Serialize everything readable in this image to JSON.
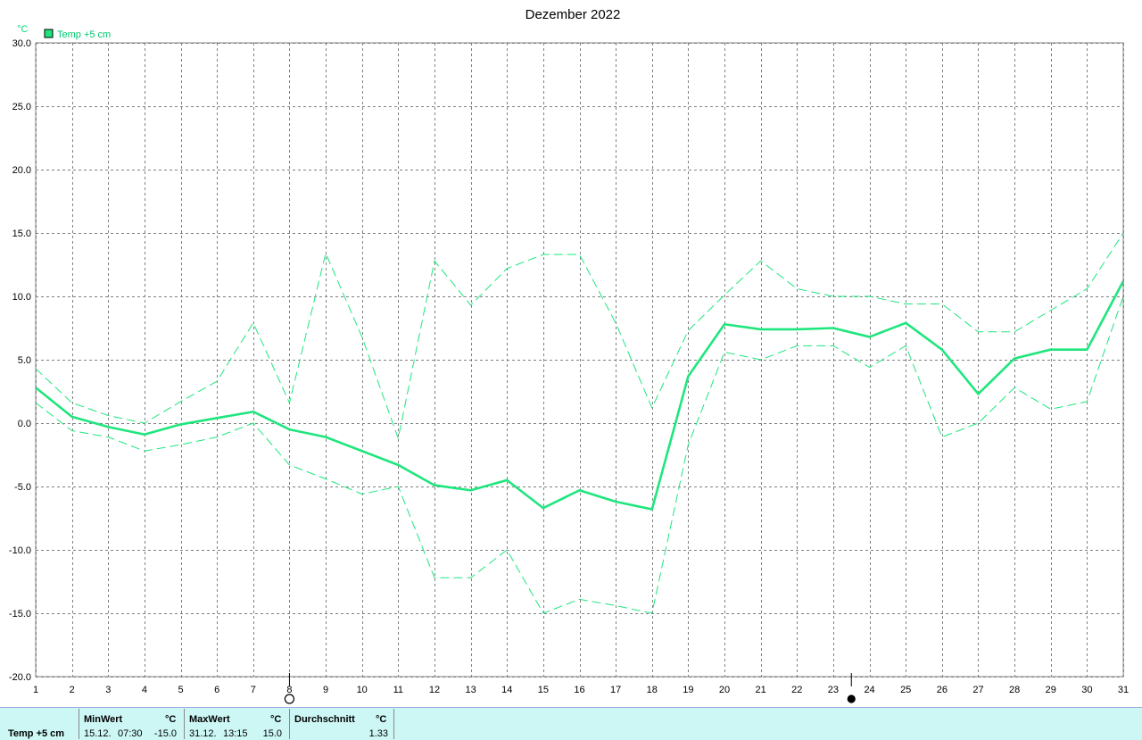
{
  "chart_data": {
    "type": "line",
    "title": "Dezember 2022",
    "ylabel": "°C",
    "ylim": [
      -20,
      30
    ],
    "xlim": [
      1,
      31
    ],
    "y_ticks": [
      "30.0",
      "25.0",
      "20.0",
      "15.0",
      "10.0",
      "5.0",
      "0.0",
      "-5.0",
      "-10.0",
      "-15.0",
      "-20.0"
    ],
    "y_tick_values": [
      30,
      25,
      20,
      15,
      10,
      5,
      0,
      -5,
      -10,
      -15,
      -20
    ],
    "x": [
      1,
      2,
      3,
      4,
      5,
      6,
      7,
      8,
      9,
      10,
      11,
      12,
      13,
      14,
      15,
      16,
      17,
      18,
      19,
      20,
      21,
      22,
      23,
      24,
      25,
      26,
      27,
      28,
      29,
      30,
      31
    ],
    "grid": true,
    "legend": {
      "label": "Temp +5 cm",
      "position": "top-left",
      "color": "#1ee67d"
    },
    "series": [
      {
        "name": "Temp +5 cm",
        "role": "mean",
        "color": "#1ee67d",
        "values": [
          2.8,
          0.5,
          -0.3,
          -0.9,
          -0.1,
          0.4,
          0.9,
          -0.5,
          -1.1,
          -2.2,
          -3.3,
          -4.9,
          -5.3,
          -4.5,
          -6.7,
          -5.3,
          -6.2,
          -6.8,
          3.7,
          7.8,
          7.4,
          7.4,
          7.5,
          6.8,
          7.9,
          5.8,
          2.3,
          5.1,
          5.8,
          5.8,
          11.2
        ]
      },
      {
        "role": "max",
        "color": "#1ee67d",
        "values": [
          4.3,
          1.6,
          0.6,
          0.0,
          1.7,
          3.3,
          7.9,
          1.6,
          13.4,
          6.8,
          -1.2,
          12.8,
          9.3,
          12.2,
          13.3,
          13.3,
          7.9,
          1.2,
          7.3,
          10.1,
          12.8,
          10.6,
          10.0,
          10.0,
          9.4,
          9.4,
          7.2,
          7.2,
          8.9,
          10.6,
          15.0
        ]
      },
      {
        "role": "min",
        "color": "#1ee67d",
        "values": [
          1.6,
          -0.6,
          -1.1,
          -2.2,
          -1.7,
          -1.1,
          0.0,
          -3.3,
          -4.4,
          -5.6,
          -5.0,
          -12.2,
          -12.2,
          -10.0,
          -15.0,
          -13.9,
          -14.4,
          -15.0,
          -1.7,
          5.6,
          5.0,
          6.1,
          6.1,
          4.4,
          6.1,
          -1.1,
          0.0,
          2.8,
          1.1,
          1.7,
          10.0
        ]
      }
    ],
    "moon_phases": [
      {
        "day": 8,
        "phase": "full-moon"
      },
      {
        "day": 23.5,
        "phase": "new-moon"
      }
    ]
  },
  "stats": {
    "row_label": "Temp +5 cm",
    "min": {
      "header": "MinWert",
      "unit": "°C",
      "date": "15.12.",
      "time": "07:30",
      "value": "-15.0"
    },
    "max": {
      "header": "MaxWert",
      "unit": "°C",
      "date": "31.12.",
      "time": "13:15",
      "value": "15.0"
    },
    "avg": {
      "header": "Durchschnitt",
      "unit": "°C",
      "value": "1.33"
    }
  }
}
